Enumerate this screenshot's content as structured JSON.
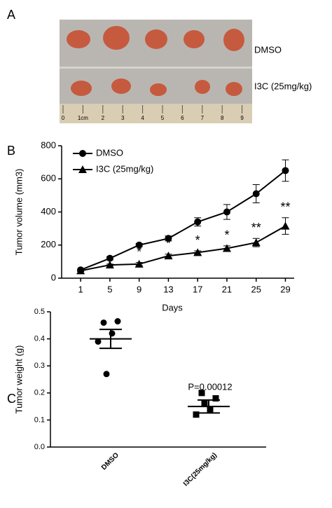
{
  "panels": [
    "A",
    "B",
    "C"
  ],
  "photo": {
    "labels": [
      "DMSO",
      "I3C (25mg/kg)"
    ],
    "ruler": [
      "0",
      "1cm",
      "2",
      "3",
      "4",
      "5",
      "6",
      "7",
      "8",
      "9"
    ]
  },
  "chart_data": [
    {
      "type": "line",
      "xlabel": "Days",
      "ylabel": "Tumor volume (mm3)",
      "x": [
        1,
        5,
        9,
        13,
        17,
        21,
        25,
        29
      ],
      "xlim": [
        -1.6,
        30.2
      ],
      "xticks": [
        1,
        5,
        9,
        13,
        17,
        21,
        25,
        29
      ],
      "ylim": [
        0,
        800
      ],
      "yticks": [
        0,
        200,
        400,
        600,
        800
      ],
      "legend": "upper left",
      "series": [
        {
          "name": "DMSO",
          "color": "#000000",
          "marker": "circle",
          "values": [
            50,
            120,
            200,
            240,
            340,
            400,
            510,
            650
          ],
          "errors": [
            5,
            10,
            10,
            15,
            25,
            45,
            55,
            65
          ]
        },
        {
          "name": "I3C (25mg/kg)",
          "color": "#000000",
          "marker": "triangle",
          "values": [
            45,
            80,
            85,
            135,
            155,
            180,
            215,
            315
          ],
          "errors": [
            5,
            5,
            10,
            10,
            10,
            15,
            25,
            50
          ]
        }
      ],
      "annotations": [
        {
          "x": 9,
          "text": "*"
        },
        {
          "x": 13,
          "text": "*"
        },
        {
          "x": 17,
          "text": "*"
        },
        {
          "x": 21,
          "text": "*"
        },
        {
          "x": 25,
          "text": "**"
        },
        {
          "x": 29,
          "text": "**"
        }
      ]
    },
    {
      "type": "dotplot",
      "ylabel": "Tumor weight (g)",
      "categories": [
        "DMSO",
        "I3C(25mg/kg)"
      ],
      "points": [
        [
          0.46,
          0.465,
          0.42,
          0.39,
          0.27
        ],
        [
          0.2,
          0.18,
          0.14,
          0.12,
          0.16
        ]
      ],
      "markers": [
        "circle",
        "square"
      ],
      "means": [
        0.4,
        0.15
      ],
      "errors": [
        0.035,
        0.024
      ],
      "ylim": [
        0,
        0.5
      ],
      "yticks": [
        {
          "value": 0,
          "label": "0.0"
        },
        0.1,
        0.2,
        0.3,
        0.4,
        0.5
      ],
      "annotation": "P=0.00012"
    }
  ]
}
